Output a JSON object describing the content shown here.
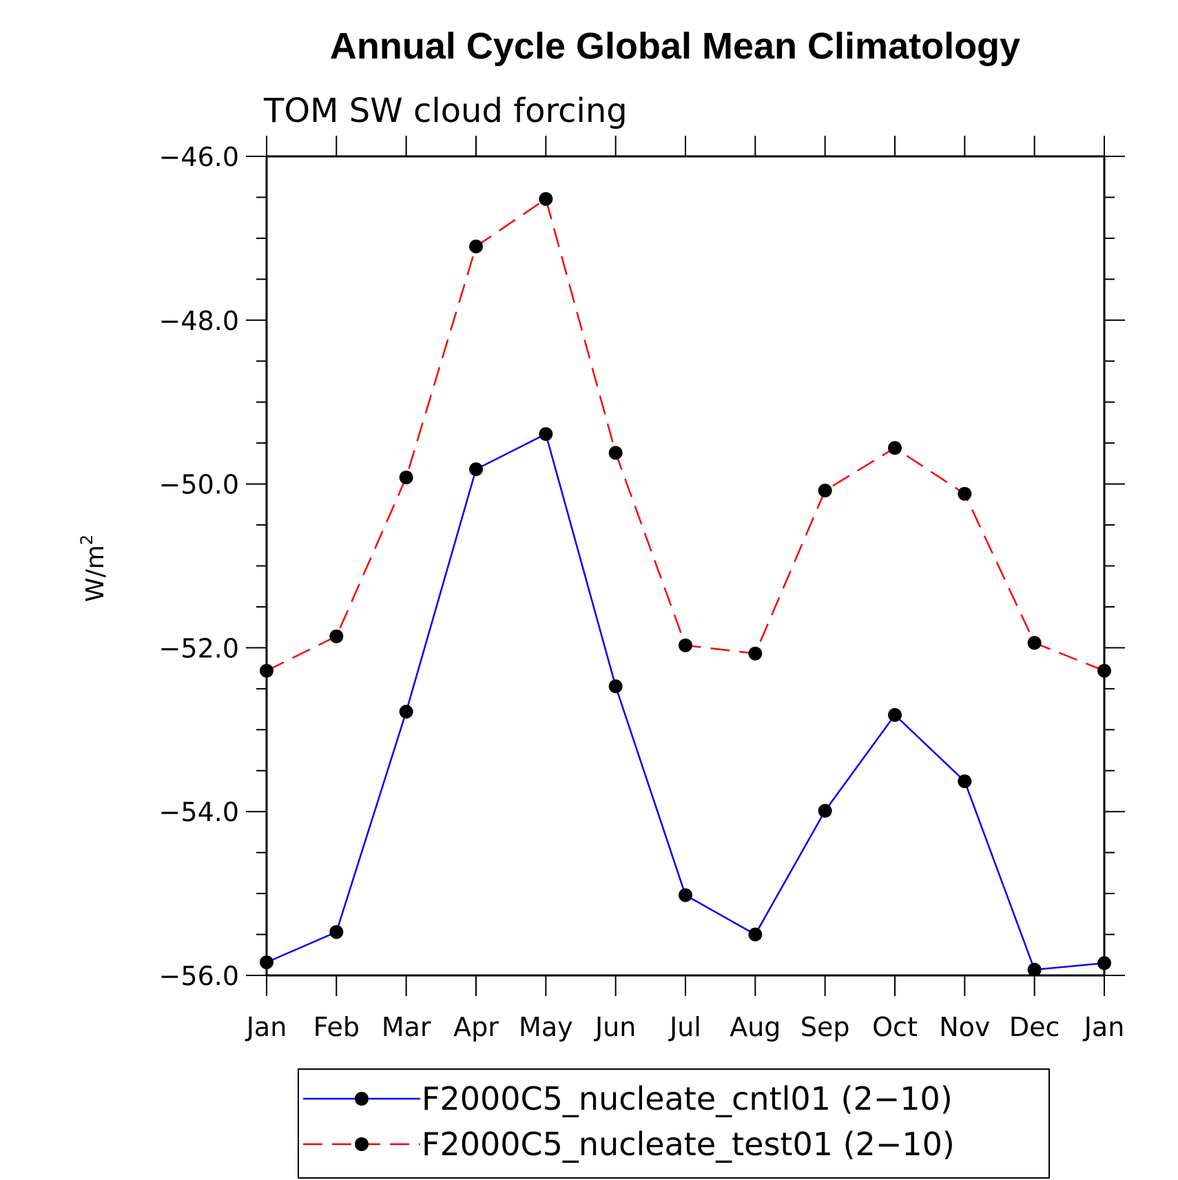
{
  "chart_data": {
    "type": "line",
    "title": "Annual Cycle Global Mean Climatology",
    "subtitle": "TOM SW cloud forcing",
    "ylabel": "W/m",
    "ylabel_sup": "2",
    "xlabel": "",
    "ylim": [
      -56.0,
      -46.0
    ],
    "yticks": [
      -46.0,
      -48.0,
      -50.0,
      -52.0,
      -54.0,
      -56.0
    ],
    "ytick_labels": [
      "−46.0",
      "−48.0",
      "−50.0",
      "−52.0",
      "−54.0",
      "−56.0"
    ],
    "categories": [
      "Jan",
      "Feb",
      "Mar",
      "Apr",
      "May",
      "Jun",
      "Jul",
      "Aug",
      "Sep",
      "Oct",
      "Nov",
      "Dec",
      "Jan"
    ],
    "legend_position": "bottom",
    "grid": false,
    "series": [
      {
        "name": "F2000C5_nucleate_cntl01 (2−10)",
        "color": "#0000ff",
        "dash": "solid",
        "values": [
          -55.84,
          -55.47,
          -52.78,
          -49.82,
          -49.39,
          -52.47,
          -55.02,
          -55.5,
          -53.99,
          -52.82,
          -53.63,
          -55.93,
          -55.85
        ]
      },
      {
        "name": "F2000C5_nucleate_test01 (2−10)",
        "color": "#ff0000",
        "dash": "dashed",
        "values": [
          -52.28,
          -51.86,
          -49.92,
          -47.1,
          -46.52,
          -49.62,
          -51.97,
          -52.07,
          -50.08,
          -49.56,
          -50.12,
          -51.94,
          -52.28
        ]
      }
    ]
  }
}
